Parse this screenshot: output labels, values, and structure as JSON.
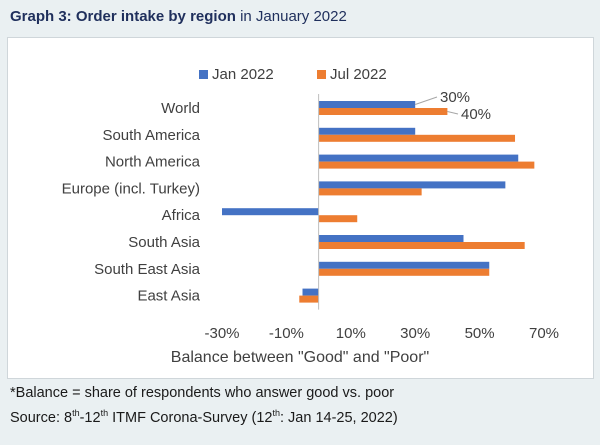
{
  "title": {
    "prefix": "Graph 3: ",
    "bold": "Order intake by region",
    "suffix": " in January 2022"
  },
  "colors": {
    "jan": "#4472c4",
    "jul": "#ed7d31",
    "text": "#404040",
    "axis": "#bfbfbf"
  },
  "chart_data": {
    "type": "bar",
    "orientation": "horizontal",
    "categories": [
      "World",
      "South America",
      "North America",
      "Europe (incl. Turkey)",
      "Africa",
      "South Asia",
      "South East Asia",
      "East Asia"
    ],
    "series": [
      {
        "name": "Jan 2022",
        "values": [
          30,
          30,
          62,
          58,
          -30,
          45,
          53,
          -5
        ]
      },
      {
        "name": "Jul 2022",
        "values": [
          40,
          61,
          67,
          32,
          12,
          64,
          53,
          -6
        ]
      }
    ],
    "annotations": [
      {
        "text": "30%",
        "category": "World",
        "series": "Jan 2022"
      },
      {
        "text": "40%",
        "category": "World",
        "series": "Jul 2022"
      }
    ],
    "xlabel": "Balance between \"Good\" and \"Poor\"",
    "xticks": [
      "-30%",
      "-10%",
      "10%",
      "30%",
      "50%",
      "70%"
    ],
    "xtick_values": [
      -30,
      -10,
      10,
      30,
      50,
      70
    ],
    "xlim": [
      -30,
      70
    ],
    "grid": false,
    "legend_position": "top"
  },
  "footnote": {
    "line1": "*Balance = share of respondents who answer good vs. poor",
    "line2_a": "Source: 8",
    "line2_sup1": "th",
    "line2_b": "-12",
    "line2_sup2": "th",
    "line2_c": " ITMF Corona-Survey (12",
    "line2_sup3": "th",
    "line2_d": ": Jan 14-25, 2022)"
  }
}
